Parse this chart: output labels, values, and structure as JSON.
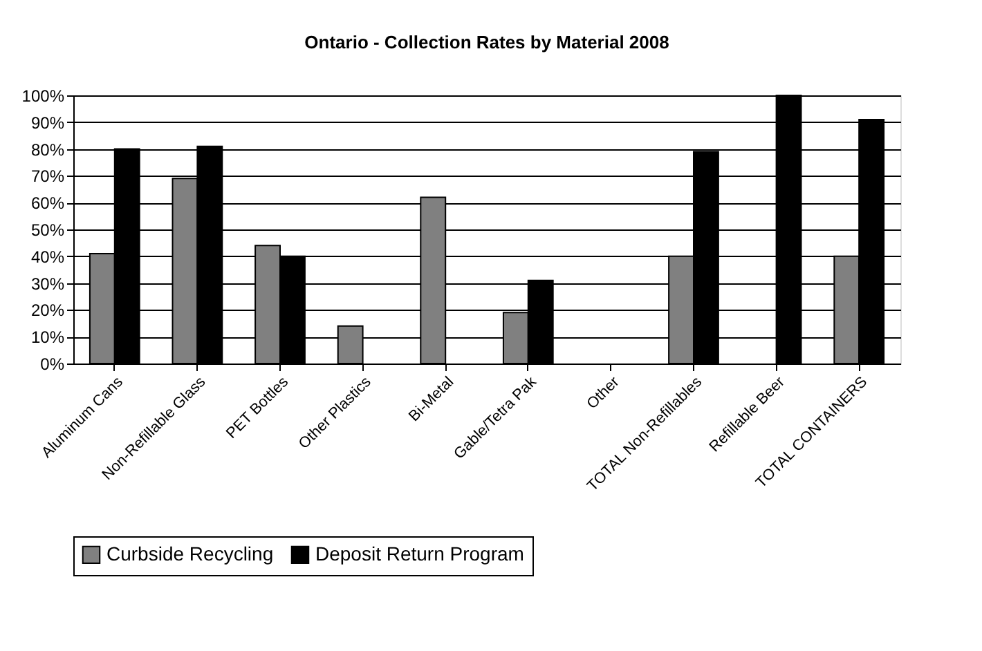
{
  "chart_data": {
    "type": "bar",
    "title": "Ontario  - Collection Rates by Material 2008",
    "categories": [
      "Aluminum Cans",
      "Non-Refillable Glass",
      "PET Bottles",
      "Other Plastics",
      "Bi-Metal",
      "Gable/Tetra Pak",
      "Other",
      "TOTAL Non-Refillables",
      "Refillable Beer",
      "TOTAL CONTAINERS"
    ],
    "series": [
      {
        "name": "Curbside Recycling",
        "color": "#808080",
        "values": [
          41,
          69,
          44,
          14,
          62,
          19,
          null,
          40,
          null,
          40
        ]
      },
      {
        "name": "Deposit Return Program",
        "color": "#000000",
        "values": [
          80,
          81,
          40,
          null,
          null,
          31,
          null,
          79,
          100,
          91
        ]
      }
    ],
    "ylim": [
      0,
      100
    ],
    "yticks": [
      {
        "value": 0,
        "label": "0%"
      },
      {
        "value": 10,
        "label": "10%"
      },
      {
        "value": 20,
        "label": "20%"
      },
      {
        "value": 30,
        "label": "30%"
      },
      {
        "value": 40,
        "label": "40%"
      },
      {
        "value": 50,
        "label": "50%"
      },
      {
        "value": 60,
        "label": "60%"
      },
      {
        "value": 70,
        "label": "70%"
      },
      {
        "value": 80,
        "label": "80%"
      },
      {
        "value": 90,
        "label": "90%"
      },
      {
        "value": 100,
        "label": "100%"
      }
    ],
    "grid": "y",
    "legend": "bottom"
  }
}
